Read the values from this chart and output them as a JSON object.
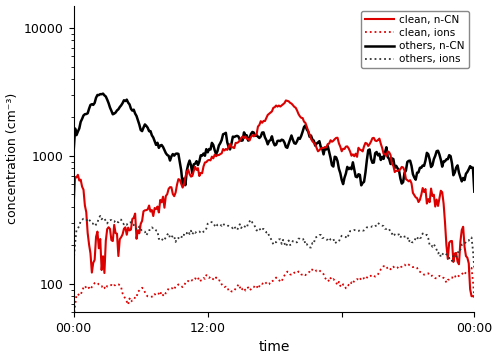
{
  "xlabel": "time",
  "ylabel": "concentration (cm⁻³)",
  "ylim": [
    60,
    15000
  ],
  "xlim": [
    0,
    287
  ],
  "xtick_positions": [
    0,
    96,
    192,
    287
  ],
  "xtick_labels": [
    "00:00",
    "12:00",
    "",
    "00:00"
  ],
  "legend_labels": [
    "clean, n-CN",
    "clean, ions",
    "others, n-CN",
    "others, ions"
  ],
  "line_colors_solid_red": "#dd0000",
  "line_colors_dot_red": "#dd0000",
  "line_colors_solid_black": "#000000",
  "line_colors_dot_black": "#333333",
  "seed": 7
}
